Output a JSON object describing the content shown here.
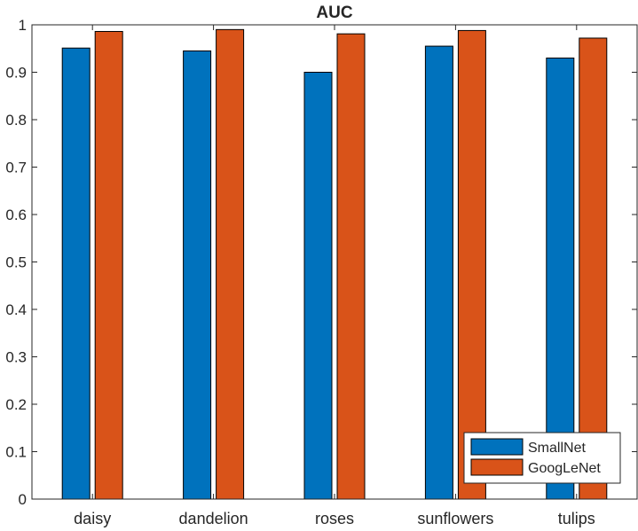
{
  "chart_data": {
    "type": "bar",
    "title": "AUC",
    "xlabel": "",
    "ylabel": "",
    "categories": [
      "daisy",
      "dandelion",
      "roses",
      "sunflowers",
      "tulips"
    ],
    "series": [
      {
        "name": "SmallNet",
        "color": "#0072BD",
        "values": [
          0.951,
          0.945,
          0.9,
          0.955,
          0.93
        ]
      },
      {
        "name": "GoogLeNet",
        "color": "#D95319",
        "values": [
          0.986,
          0.99,
          0.981,
          0.988,
          0.972
        ]
      }
    ],
    "ylim": [
      0,
      1
    ],
    "yticks": [
      "0",
      "0.1",
      "0.2",
      "0.3",
      "0.4",
      "0.5",
      "0.6",
      "0.7",
      "0.8",
      "0.9",
      "1"
    ],
    "grid": false,
    "legend_position": "bottom-right"
  }
}
